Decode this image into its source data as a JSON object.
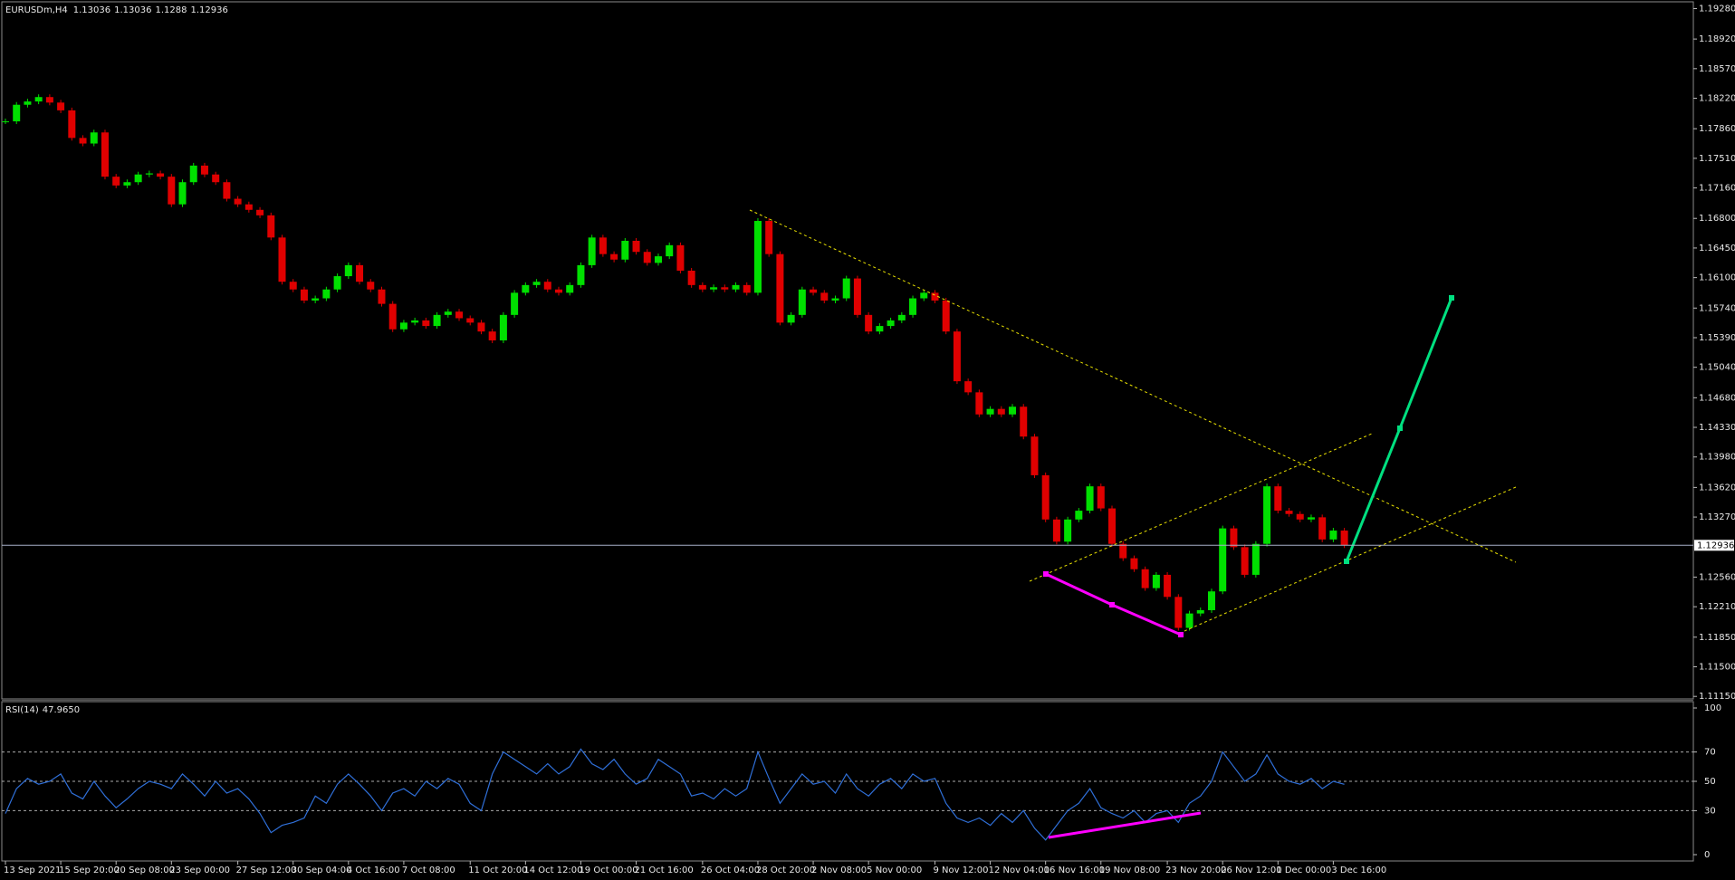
{
  "chart_data": [
    {
      "type": "candlestick",
      "title": "EURUSDm,H4",
      "last_bar": {
        "open": 1.13036,
        "high": 1.13036,
        "low": 1.1288,
        "close": 1.12936
      },
      "categories": [
        "13 Sep 2021",
        null,
        null,
        null,
        null,
        "15 Sep 20:00",
        null,
        null,
        null,
        null,
        "20 Sep 08:00",
        null,
        null,
        null,
        null,
        "23 Sep 00:00",
        null,
        null,
        null,
        null,
        null,
        "27 Sep 12:00",
        null,
        null,
        null,
        null,
        "30 Sep 04:00",
        null,
        null,
        null,
        null,
        "4 Oct 16:00",
        null,
        null,
        null,
        null,
        "7 Oct 08:00",
        null,
        null,
        null,
        null,
        null,
        "11 Oct 20:00",
        null,
        null,
        null,
        null,
        "14 Oct 12:00",
        null,
        null,
        null,
        null,
        "19 Oct 00:00",
        null,
        null,
        null,
        null,
        "21 Oct 16:00",
        null,
        null,
        null,
        null,
        null,
        "26 Oct 04:00",
        null,
        null,
        null,
        null,
        "28 Oct 20:00",
        null,
        null,
        null,
        null,
        "2 Nov 08:00",
        null,
        null,
        null,
        null,
        "5 Nov 00:00",
        null,
        null,
        null,
        null,
        null,
        "9 Nov 12:00",
        null,
        null,
        null,
        null,
        "12 Nov 04:00",
        null,
        null,
        null,
        null,
        "16 Nov 16:00",
        null,
        null,
        null,
        null,
        "19 Nov 08:00",
        null,
        null,
        null,
        null,
        null,
        "23 Nov 20:00",
        null,
        null,
        null,
        null,
        "26 Nov 12:00",
        null,
        null,
        null,
        null,
        "1 Dec 00:00",
        null,
        null,
        null,
        null,
        "3 Dec 16:00",
        null
      ],
      "values": [
        1.17947,
        1.18143,
        1.18182,
        1.18234,
        1.18169,
        1.18077,
        1.17751,
        1.17685,
        1.17816,
        1.17293,
        1.17189,
        1.17228,
        1.17319,
        1.17332,
        1.17293,
        1.16966,
        1.17228,
        1.17424,
        1.17319,
        1.17228,
        1.17032,
        1.16966,
        1.16901,
        1.16836,
        1.16574,
        1.16051,
        1.1596,
        1.15829,
        1.15855,
        1.1596,
        1.16117,
        1.16247,
        1.16051,
        1.1596,
        1.1579,
        1.15489,
        1.15568,
        1.15594,
        1.15528,
        1.15659,
        1.15698,
        1.1562,
        1.15568,
        1.15463,
        1.15358,
        1.15659,
        1.15921,
        1.16012,
        1.16051,
        1.1596,
        1.15921,
        1.16012,
        1.16247,
        1.16574,
        1.16378,
        1.16313,
        1.16535,
        1.16404,
        1.16274,
        1.16352,
        1.16483,
        1.16182,
        1.16012,
        1.1596,
        1.15986,
        1.1596,
        1.16012,
        1.15921,
        1.1677,
        1.16378,
        1.15568,
        1.15659,
        1.1596,
        1.15921,
        1.15829,
        1.15855,
        1.1609,
        1.15659,
        1.15463,
        1.15528,
        1.15594,
        1.15659,
        1.15855,
        1.15921,
        1.15829,
        1.15463,
        1.14875,
        1.14744,
        1.14483,
        1.14548,
        1.14483,
        1.14574,
        1.14221,
        1.13764,
        1.13241,
        1.12979,
        1.13241,
        1.13345,
        1.13633,
        1.13372,
        1.12953,
        1.12783,
        1.12653,
        1.1243,
        1.12587,
        1.12326,
        1.1196,
        1.1213,
        1.12169,
        1.12391,
        1.13136,
        1.12914,
        1.12587,
        1.12953,
        1.13633,
        1.13345,
        1.13306,
        1.13241,
        1.13267,
        1.13005,
        1.1311,
        1.12936
      ],
      "up_color": "#00e000",
      "down_color": "#e00000",
      "ylim": [
        1.1112,
        1.1936
      ],
      "yticks": [
        {
          "value": 1.1928,
          "label": "1.19280"
        },
        {
          "value": 1.1892,
          "label": "1.18920"
        },
        {
          "value": 1.1857,
          "label": "1.18570"
        },
        {
          "value": 1.1822,
          "label": "1.18220"
        },
        {
          "value": 1.1786,
          "label": "1.17860"
        },
        {
          "value": 1.1751,
          "label": "1.17510"
        },
        {
          "value": 1.1716,
          "label": "1.17160"
        },
        {
          "value": 1.168,
          "label": "1.16800"
        },
        {
          "value": 1.1645,
          "label": "1.16450"
        },
        {
          "value": 1.161,
          "label": "1.16100"
        },
        {
          "value": 1.1574,
          "label": "1.15740"
        },
        {
          "value": 1.1539,
          "label": "1.15390"
        },
        {
          "value": 1.1504,
          "label": "1.15040"
        },
        {
          "value": 1.1468,
          "label": "1.14680"
        },
        {
          "value": 1.1433,
          "label": "1.14330"
        },
        {
          "value": 1.1398,
          "label": "1.13980"
        },
        {
          "value": 1.1362,
          "label": "1.13620"
        },
        {
          "value": 1.1327,
          "label": "1.13270"
        },
        {
          "value": 1.1256,
          "label": "1.12560"
        },
        {
          "value": 1.1221,
          "label": "1.12210"
        },
        {
          "value": 1.1185,
          "label": "1.11850"
        },
        {
          "value": 1.115,
          "label": "1.11500"
        },
        {
          "value": 1.1115,
          "label": "1.11150"
        }
      ]
    },
    {
      "type": "line",
      "name": "RSI(14)",
      "color": "#2f6fd8",
      "last_value": {
        "value": 47.965,
        "label": "47.9650"
      },
      "values": [
        28,
        45,
        52,
        48,
        50,
        55,
        42,
        38,
        50,
        40,
        32,
        38,
        45,
        50,
        48,
        45,
        55,
        48,
        40,
        50,
        42,
        45,
        38,
        28,
        15,
        20,
        22,
        25,
        40,
        35,
        48,
        55,
        48,
        40,
        30,
        42,
        45,
        40,
        50,
        45,
        52,
        48,
        35,
        30,
        55,
        70,
        65,
        60,
        55,
        62,
        55,
        60,
        72,
        62,
        58,
        65,
        55,
        48,
        52,
        65,
        60,
        55,
        40,
        42,
        38,
        45,
        40,
        45,
        70,
        52,
        35,
        45,
        55,
        48,
        50,
        42,
        55,
        45,
        40,
        48,
        52,
        45,
        55,
        50,
        52,
        35,
        25,
        22,
        25,
        20,
        28,
        22,
        30,
        18,
        10,
        20,
        30,
        35,
        45,
        32,
        28,
        25,
        30,
        22,
        28,
        30,
        22,
        35,
        40,
        50,
        70,
        60,
        50,
        55,
        68,
        55,
        50,
        48,
        52,
        45,
        50,
        47.965
      ],
      "ylim": [
        0,
        100
      ],
      "yticks": [
        0,
        30,
        50,
        70,
        100
      ],
      "levels": [
        70,
        50,
        30
      ]
    }
  ]
}
